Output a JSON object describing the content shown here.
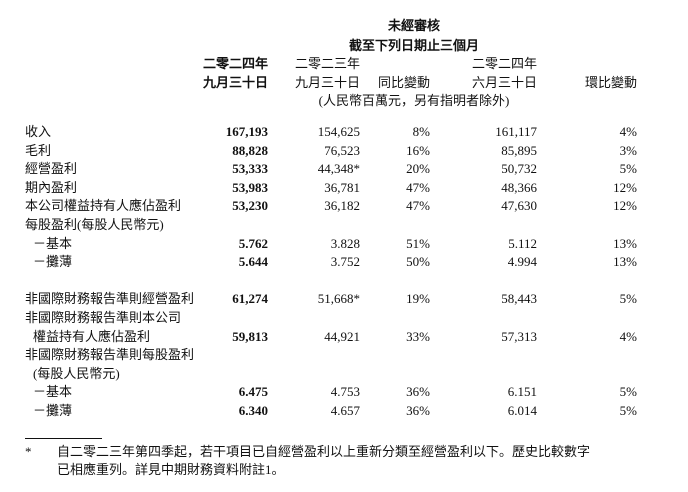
{
  "header": {
    "unaudited": "未經審核",
    "period": "截至下列日期止三個月",
    "col1_year": "二零二四年",
    "col1_date": "九月三十日",
    "col2_year": "二零二三年",
    "col2_date": "九月三十日",
    "col3": "同比變動",
    "col4_year": "二零二四年",
    "col4_date": "六月三十日",
    "col5": "環比變動",
    "unit": "(人民幣百萬元，另有指明者除外)"
  },
  "rows": [
    {
      "label": "收入",
      "v": [
        "167,193",
        "154,625",
        "8%",
        "161,117",
        "4%"
      ]
    },
    {
      "label": "毛利",
      "v": [
        "88,828",
        "76,523",
        "16%",
        "85,895",
        "3%"
      ]
    },
    {
      "label": "經營盈利",
      "v": [
        "53,333",
        "44,348*",
        "20%",
        "50,732",
        "5%"
      ]
    },
    {
      "label": "期內盈利",
      "v": [
        "53,983",
        "36,781",
        "47%",
        "48,366",
        "12%"
      ]
    },
    {
      "label": "本公司權益持有人應佔盈利",
      "v": [
        "53,230",
        "36,182",
        "47%",
        "47,630",
        "12%"
      ]
    },
    {
      "label": "每股盈利(每股人民幣元)",
      "v": []
    },
    {
      "label": "－基本",
      "indent": true,
      "v": [
        "5.762",
        "3.828",
        "51%",
        "5.112",
        "13%"
      ]
    },
    {
      "label": "－攤薄",
      "indent": true,
      "v": [
        "5.644",
        "3.752",
        "50%",
        "4.994",
        "13%"
      ]
    },
    {
      "gap": true,
      "label": "非國際財務報告準則經營盈利",
      "v": [
        "61,274",
        "51,668*",
        "19%",
        "58,443",
        "5%"
      ]
    },
    {
      "label": "非國際財務報告準則本公司",
      "v": []
    },
    {
      "label": "權益持有人應佔盈利",
      "indent": true,
      "v": [
        "59,813",
        "44,921",
        "33%",
        "57,313",
        "4%"
      ]
    },
    {
      "label": "非國際財務報告準則每股盈利",
      "v": []
    },
    {
      "label": "(每股人民幣元)",
      "indent": true,
      "v": []
    },
    {
      "label": "－基本",
      "indent": true,
      "v": [
        "6.475",
        "4.753",
        "36%",
        "6.151",
        "5%"
      ]
    },
    {
      "label": "－攤薄",
      "indent": true,
      "v": [
        "6.340",
        "4.657",
        "36%",
        "6.014",
        "5%"
      ]
    }
  ],
  "footnote": {
    "marker": "*",
    "line1": "自二零二三年第四季起，若干項目已自經營盈利以上重新分類至經營盈利以下。歷史比較數字",
    "line2": "已相應重列。詳見中期財務資料附註1。"
  }
}
